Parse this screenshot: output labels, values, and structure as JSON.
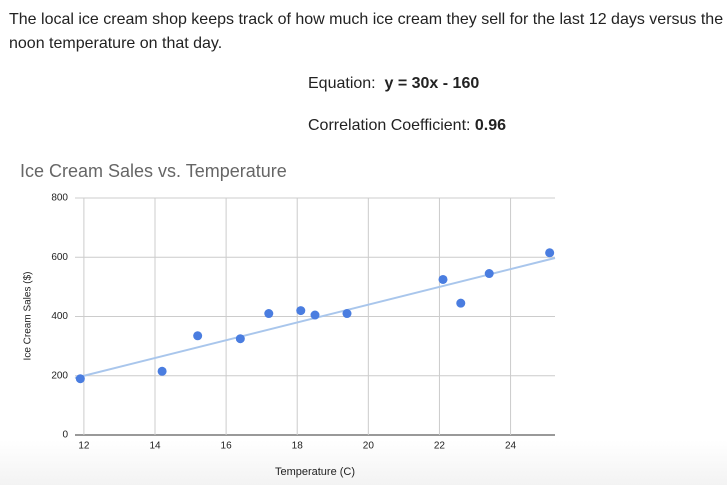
{
  "intro": "The local ice cream shop keeps track of how much ice cream they sell for the last 12 days versus the noon temperature on that day.",
  "equation_label": "Equation:",
  "equation": "y = 30x - 160",
  "correlation_label": "Correlation Coefficient:",
  "correlation": "0.96",
  "chart_data": {
    "type": "scatter",
    "title": "Ice Cream Sales vs. Temperature",
    "x_label": "Temperature (C)",
    "y_label": "Ice Cream Sales ($)",
    "x": [
      11.9,
      14.2,
      15.2,
      16.4,
      17.2,
      18.1,
      18.5,
      19.4,
      22.1,
      22.6,
      23.4,
      25.1
    ],
    "values": [
      190,
      215,
      335,
      325,
      410,
      420,
      405,
      410,
      525,
      445,
      545,
      615
    ],
    "color": "#4a7de0",
    "trendline": {
      "x": [
        11.75,
        25.25
      ],
      "y": [
        192.5,
        597.5
      ],
      "color": "#a9c6ec"
    },
    "xlim": [
      11.75,
      25.25
    ],
    "xticks": [
      12,
      14,
      16,
      18,
      20,
      22,
      24
    ],
    "ylim": [
      0,
      800
    ],
    "yticks": [
      0,
      200,
      400,
      600,
      800
    ],
    "grid": true
  }
}
